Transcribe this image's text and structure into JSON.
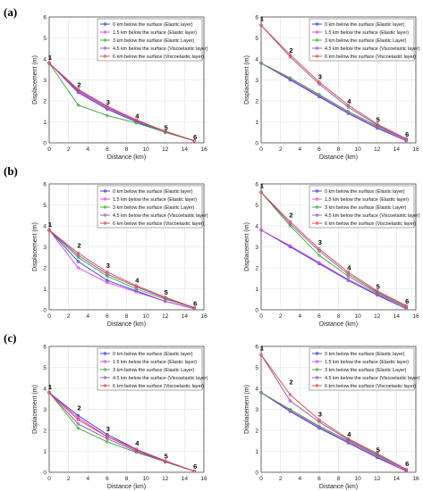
{
  "row_labels": [
    "(a)",
    "(b)",
    "(c)"
  ],
  "legend_entries": [
    "0 km below the surface (Elastic layer)",
    "1.5 km below the surface (Elastic layer)",
    "3 km below the surface (Elastic Layer)",
    "4.5 km below the surface (Viscoelastic layer)",
    "6 km below the surface (Viscoelastic layer)"
  ],
  "series_colors": [
    "#3030e0",
    "#e040e0",
    "#33aa33",
    "#8a4fb0",
    "#e04040"
  ],
  "chart_data": [
    {
      "type": "line",
      "panel": "a-left",
      "xlabel": "Distance (km)",
      "ylabel": "Displacement (m)",
      "xlim": [
        0,
        16
      ],
      "ylim": [
        0,
        6
      ],
      "xticks": [
        0,
        2,
        4,
        6,
        8,
        10,
        12,
        14,
        16
      ],
      "yticks": [
        0,
        1,
        2,
        3,
        4,
        5,
        6
      ],
      "grid": true,
      "legend": "top-right",
      "x": [
        0,
        3,
        6,
        9,
        12,
        15
      ],
      "point_labels": [
        "1",
        "2",
        "3",
        "4",
        "5",
        "6"
      ],
      "label_values": [
        3.95,
        2.65,
        1.82,
        1.17,
        0.62,
        0.18
      ],
      "series": [
        {
          "name": "0 km below the surface (Elastic layer)",
          "values": [
            3.8,
            2.4,
            1.6,
            1.0,
            0.5,
            0.1
          ]
        },
        {
          "name": "1.5 km below the surface (Elastic layer)",
          "values": [
            3.8,
            2.45,
            1.65,
            1.05,
            0.55,
            0.1
          ]
        },
        {
          "name": "3 km below the surface (Elastic Layer)",
          "values": [
            3.8,
            1.8,
            1.3,
            0.95,
            0.5,
            0.1
          ]
        },
        {
          "name": "4.5 km below the surface (Viscoelastic layer)",
          "values": [
            3.8,
            2.5,
            1.7,
            1.05,
            0.55,
            0.1
          ]
        },
        {
          "name": "6 km below the surface (Viscoelastic layer)",
          "values": [
            3.8,
            2.55,
            1.75,
            1.1,
            0.55,
            0.1
          ]
        }
      ]
    },
    {
      "type": "line",
      "panel": "a-right",
      "xlabel": "Distance (km)",
      "ylabel": "Displacement (m)",
      "xlim": [
        0,
        16
      ],
      "ylim": [
        0,
        6
      ],
      "xticks": [
        0,
        2,
        4,
        6,
        8,
        10,
        12,
        14,
        16
      ],
      "yticks": [
        0,
        1,
        2,
        3,
        4,
        5,
        6
      ],
      "grid": true,
      "legend": "top-right",
      "x": [
        0,
        3,
        6,
        9,
        12,
        15
      ],
      "point_labels": [
        "1",
        "2",
        "3",
        "4",
        "5",
        "6"
      ],
      "label_values": [
        5.8,
        4.3,
        3.05,
        1.88,
        1.0,
        0.3
      ],
      "series": [
        {
          "name": "0 km below the surface (Elastic layer)",
          "values": [
            3.8,
            3.0,
            2.2,
            1.4,
            0.7,
            0.1
          ]
        },
        {
          "name": "1.5 km below the surface (Elastic layer)",
          "values": [
            3.8,
            3.05,
            2.25,
            1.45,
            0.75,
            0.1
          ]
        },
        {
          "name": "3 km below the surface (Elastic Layer)",
          "values": [
            3.8,
            3.1,
            2.3,
            1.5,
            0.8,
            0.15
          ]
        },
        {
          "name": "4.5 km below the surface (Viscoelastic layer)",
          "values": [
            5.6,
            4.1,
            2.8,
            1.7,
            0.85,
            0.15
          ]
        },
        {
          "name": "6 km below the surface (Viscoelastic layer)",
          "values": [
            5.6,
            4.2,
            2.9,
            1.8,
            0.9,
            0.2
          ]
        }
      ]
    },
    {
      "type": "line",
      "panel": "b-left",
      "xlabel": "Distance (km)",
      "ylabel": "Displacement (m)",
      "xlim": [
        0,
        16
      ],
      "ylim": [
        0,
        6
      ],
      "xticks": [
        0,
        2,
        4,
        6,
        8,
        10,
        12,
        14,
        16
      ],
      "yticks": [
        0,
        1,
        2,
        3,
        4,
        5,
        6
      ],
      "grid": true,
      "legend": "top-right",
      "x": [
        0,
        3,
        6,
        9,
        12,
        15
      ],
      "point_labels": [
        "1",
        "2",
        "3",
        "4",
        "5",
        "6"
      ],
      "label_values": [
        3.95,
        2.95,
        2.0,
        1.3,
        0.72,
        0.2
      ],
      "series": [
        {
          "name": "0 km below the surface (Elastic layer)",
          "values": [
            3.8,
            2.3,
            1.4,
            0.9,
            0.4,
            0.05
          ]
        },
        {
          "name": "1.5 km below the surface (Elastic layer)",
          "values": [
            3.8,
            2.0,
            1.3,
            0.85,
            0.4,
            0.05
          ]
        },
        {
          "name": "3 km below the surface (Elastic Layer)",
          "values": [
            3.8,
            2.5,
            1.6,
            1.0,
            0.5,
            0.1
          ]
        },
        {
          "name": "4.5 km below the surface (Viscoelastic layer)",
          "values": [
            3.8,
            2.6,
            1.7,
            1.1,
            0.55,
            0.1
          ]
        },
        {
          "name": "6 km below the surface (Viscoelastic layer)",
          "values": [
            3.8,
            2.7,
            1.8,
            1.15,
            0.6,
            0.1
          ]
        }
      ]
    },
    {
      "type": "line",
      "panel": "b-right",
      "xlabel": "Distance (km)",
      "ylabel": "Displacement (m)",
      "xlim": [
        0,
        16
      ],
      "ylim": [
        0,
        6
      ],
      "xticks": [
        0,
        2,
        4,
        6,
        8,
        10,
        12,
        14,
        16
      ],
      "yticks": [
        0,
        1,
        2,
        3,
        4,
        5,
        6
      ],
      "grid": true,
      "legend": "top-right",
      "x": [
        0,
        3,
        6,
        9,
        12,
        15
      ],
      "point_labels": [
        "1",
        "2",
        "3",
        "4",
        "5",
        "6"
      ],
      "label_values": [
        5.8,
        4.4,
        3.1,
        1.9,
        1.0,
        0.3
      ],
      "series": [
        {
          "name": "0 km below the surface (Elastic layer)",
          "values": [
            3.8,
            3.0,
            2.2,
            1.4,
            0.7,
            0.05
          ]
        },
        {
          "name": "1.5 km below the surface (Elastic layer)",
          "values": [
            3.8,
            3.05,
            2.25,
            1.45,
            0.75,
            0.05
          ]
        },
        {
          "name": "3 km below the surface (Elastic Layer)",
          "values": [
            5.6,
            4.0,
            2.6,
            1.6,
            0.8,
            0.1
          ]
        },
        {
          "name": "4.5 km below the surface (Viscoelastic layer)",
          "values": [
            5.6,
            4.1,
            2.8,
            1.7,
            0.85,
            0.15
          ]
        },
        {
          "name": "6 km below the surface (Viscoelastic layer)",
          "values": [
            5.6,
            4.2,
            2.9,
            1.8,
            0.9,
            0.2
          ]
        }
      ]
    },
    {
      "type": "line",
      "panel": "c-left",
      "xlabel": "Distance (km)",
      "ylabel": "Displacement (m)",
      "xlim": [
        0,
        16
      ],
      "ylim": [
        0,
        6
      ],
      "xticks": [
        0,
        2,
        4,
        6,
        8,
        10,
        12,
        14,
        16
      ],
      "yticks": [
        0,
        1,
        2,
        3,
        4,
        5,
        6
      ],
      "grid": true,
      "legend": "top-right",
      "x": [
        0,
        3,
        6,
        9,
        12,
        15
      ],
      "point_labels": [
        "1",
        "2",
        "3",
        "4",
        "5",
        "6"
      ],
      "label_values": [
        3.95,
        2.95,
        1.95,
        1.28,
        0.65,
        0.18
      ],
      "series": [
        {
          "name": "0 km below the surface (Elastic layer)",
          "values": [
            3.8,
            2.7,
            1.8,
            1.1,
            0.5,
            0.05
          ]
        },
        {
          "name": "1.5 km below the surface (Elastic layer)",
          "values": [
            3.8,
            2.6,
            1.7,
            1.05,
            0.5,
            0.05
          ]
        },
        {
          "name": "3 km below the surface (Elastic Layer)",
          "values": [
            3.8,
            2.1,
            1.45,
            0.95,
            0.5,
            0.05
          ]
        },
        {
          "name": "4.5 km below the surface (Viscoelastic layer)",
          "values": [
            3.8,
            2.3,
            1.6,
            1.0,
            0.5,
            0.05
          ]
        },
        {
          "name": "6 km below the surface (Viscoelastic layer)",
          "values": [
            3.8,
            2.5,
            1.7,
            1.1,
            0.55,
            0.05
          ]
        }
      ]
    },
    {
      "type": "line",
      "panel": "c-right",
      "xlabel": "Distance (km)",
      "ylabel": "Displacement (m)",
      "xlim": [
        0,
        16
      ],
      "ylim": [
        0,
        6
      ],
      "xticks": [
        0,
        2,
        4,
        6,
        8,
        10,
        12,
        14,
        16
      ],
      "yticks": [
        0,
        1,
        2,
        3,
        4,
        5,
        6
      ],
      "grid": true,
      "legend": "top-right",
      "x": [
        0,
        3,
        6,
        9,
        12,
        15
      ],
      "point_labels": [
        "1",
        "2",
        "3",
        "4",
        "5",
        "6"
      ],
      "label_values": [
        5.8,
        4.2,
        2.65,
        1.7,
        0.95,
        0.3
      ],
      "series": [
        {
          "name": "0 km below the surface (Elastic layer)",
          "values": [
            3.8,
            2.9,
            2.1,
            1.4,
            0.7,
            0.05
          ]
        },
        {
          "name": "1.5 km below the surface (Elastic layer)",
          "values": [
            3.8,
            2.95,
            2.15,
            1.45,
            0.75,
            0.05
          ]
        },
        {
          "name": "3 km below the surface (Elastic Layer)",
          "values": [
            3.8,
            3.0,
            2.2,
            1.5,
            0.8,
            0.1
          ]
        },
        {
          "name": "4.5 km below the surface (Viscoelastic layer)",
          "values": [
            5.6,
            3.4,
            2.4,
            1.55,
            0.85,
            0.1
          ]
        },
        {
          "name": "6 km below the surface (Viscoelastic layer)",
          "values": [
            5.6,
            3.7,
            2.5,
            1.6,
            0.9,
            0.15
          ]
        }
      ]
    }
  ]
}
